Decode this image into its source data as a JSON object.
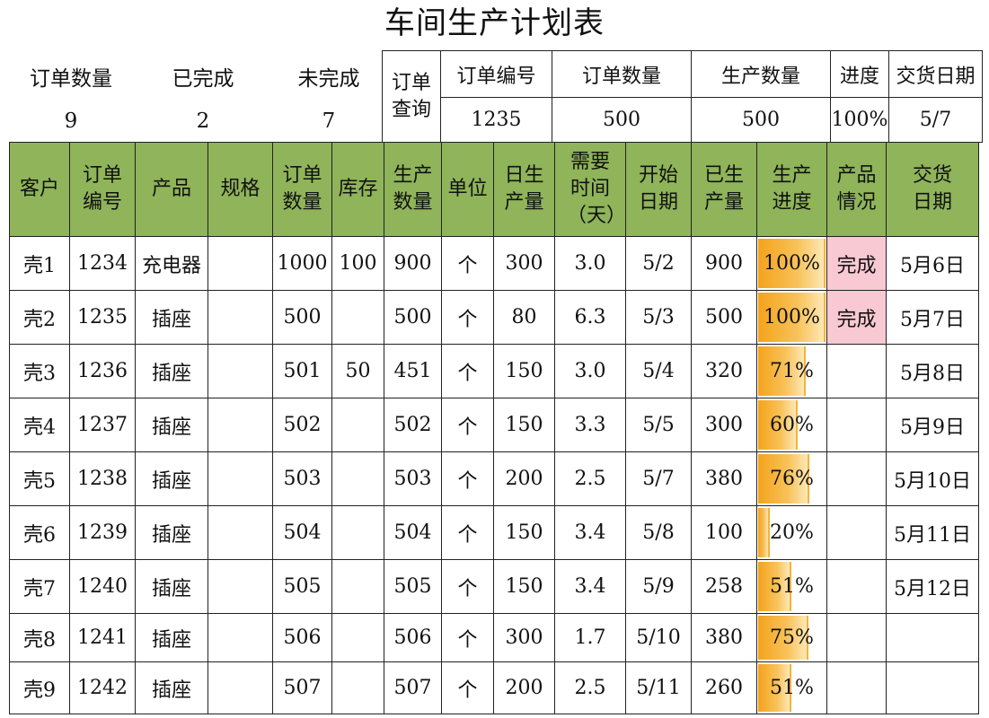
{
  "title": "车间生产计划表",
  "summary": {
    "order_count_label": "订单数量",
    "done_label": "已完成",
    "undone_label": "未完成",
    "order_count": "9",
    "done": "2",
    "undone": "7"
  },
  "query": {
    "label": "订单查询",
    "headers": [
      "订单编号",
      "订单数量",
      "生产数量",
      "进度",
      "交货日期"
    ],
    "values": [
      "1235",
      "500",
      "500",
      "100%",
      "5/7"
    ]
  },
  "table": {
    "headers": [
      "客户",
      "订单编号",
      "产品",
      "规格",
      "订单数量",
      "库存",
      "生产数量",
      "单位",
      "日生产量",
      "需要时间（天）",
      "开始日期",
      "已生产量",
      "生产进度",
      "产品情况",
      "交货日期"
    ],
    "rows": [
      {
        "customer": "壳1",
        "order_no": "1234",
        "product": "充电器",
        "spec": "",
        "order_qty": "1000",
        "stock": "100",
        "prod_qty": "900",
        "unit": "个",
        "daily": "300",
        "days": "3.0",
        "start": "5/2",
        "produced": "900",
        "progress": "100%",
        "progress_value": 1.0,
        "status": "完成",
        "delivery": "5月6日"
      },
      {
        "customer": "壳2",
        "order_no": "1235",
        "product": "插座",
        "spec": "",
        "order_qty": "500",
        "stock": "",
        "prod_qty": "500",
        "unit": "个",
        "daily": "80",
        "days": "6.3",
        "start": "5/3",
        "produced": "500",
        "progress": "100%",
        "progress_value": 1.0,
        "status": "完成",
        "delivery": "5月7日"
      },
      {
        "customer": "壳3",
        "order_no": "1236",
        "product": "插座",
        "spec": "",
        "order_qty": "501",
        "stock": "50",
        "prod_qty": "451",
        "unit": "个",
        "daily": "150",
        "days": "3.0",
        "start": "5/4",
        "produced": "320",
        "progress": "71%",
        "progress_value": 0.71,
        "status": "",
        "delivery": "5月8日"
      },
      {
        "customer": "壳4",
        "order_no": "1237",
        "product": "插座",
        "spec": "",
        "order_qty": "502",
        "stock": "",
        "prod_qty": "502",
        "unit": "个",
        "daily": "150",
        "days": "3.3",
        "start": "5/5",
        "produced": "300",
        "progress": "60%",
        "progress_value": 0.6,
        "status": "",
        "delivery": "5月9日"
      },
      {
        "customer": "壳5",
        "order_no": "1238",
        "product": "插座",
        "spec": "",
        "order_qty": "503",
        "stock": "",
        "prod_qty": "503",
        "unit": "个",
        "daily": "200",
        "days": "2.5",
        "start": "5/7",
        "produced": "380",
        "progress": "76%",
        "progress_value": 0.76,
        "status": "",
        "delivery": "5月10日"
      },
      {
        "customer": "壳6",
        "order_no": "1239",
        "product": "插座",
        "spec": "",
        "order_qty": "504",
        "stock": "",
        "prod_qty": "504",
        "unit": "个",
        "daily": "150",
        "days": "3.4",
        "start": "5/8",
        "produced": "100",
        "progress": "20%",
        "progress_value": 0.2,
        "status": "",
        "delivery": "5月11日"
      },
      {
        "customer": "壳7",
        "order_no": "1240",
        "product": "插座",
        "spec": "",
        "order_qty": "505",
        "stock": "",
        "prod_qty": "505",
        "unit": "个",
        "daily": "150",
        "days": "3.4",
        "start": "5/9",
        "produced": "258",
        "progress": "51%",
        "progress_value": 0.51,
        "status": "",
        "delivery": "5月12日"
      },
      {
        "customer": "壳8",
        "order_no": "1241",
        "product": "插座",
        "spec": "",
        "order_qty": "506",
        "stock": "",
        "prod_qty": "506",
        "unit": "个",
        "daily": "300",
        "days": "1.7",
        "start": "5/10",
        "produced": "380",
        "progress": "75%",
        "progress_value": 0.75,
        "status": "",
        "delivery": ""
      },
      {
        "customer": "壳9",
        "order_no": "1242",
        "product": "插座",
        "spec": "",
        "order_qty": "507",
        "stock": "",
        "prod_qty": "507",
        "unit": "个",
        "daily": "200",
        "days": "2.5",
        "start": "5/11",
        "produced": "260",
        "progress": "51%",
        "progress_value": 0.51,
        "status": "",
        "delivery": ""
      }
    ]
  },
  "colors": {
    "header_bg": "#8fb459",
    "status_done_bg": "#f8c8d3",
    "bar_color": "#f4a31c"
  }
}
